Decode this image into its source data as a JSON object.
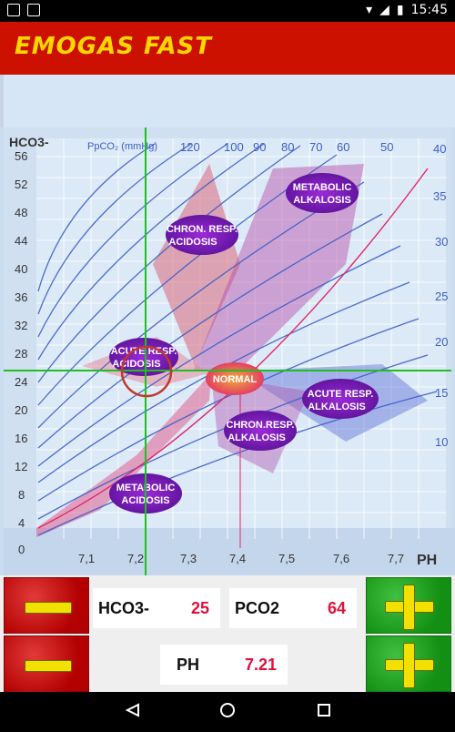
{
  "status": {
    "time": "15:45"
  },
  "app": {
    "title": "EMOGAS FAST"
  },
  "chart": {
    "hco3_label": "HCO3-",
    "pco2_label": "PpCO₂ (mmHg)",
    "ph_label": "PH",
    "y_ticks": [
      "56",
      "52",
      "48",
      "44",
      "40",
      "36",
      "32",
      "28",
      "24",
      "20",
      "16",
      "12",
      "8",
      "4",
      "0"
    ],
    "x_ticks": [
      "7,1",
      "7,2",
      "7,3",
      "7,4",
      "7,5",
      "7,6",
      "7,7"
    ],
    "pco2_top_ticks": [
      "120",
      "100",
      "90",
      "80",
      "70",
      "60",
      "50",
      "40"
    ],
    "pco2_right_ticks": [
      "35",
      "30",
      "25",
      "20",
      "15",
      "10"
    ],
    "zones": {
      "metabolic_alkalosis": [
        "METABOLIC",
        "ALKALOSIS"
      ],
      "chron_resp_acidosis": [
        "CHRON. RESP.",
        "ACIDOSIS"
      ],
      "acute_resp_acidosis": [
        "ACUTE RESP.",
        "ACIDOSIS"
      ],
      "normal": "NORMAL",
      "acute_resp_alkalosis": [
        "ACUTE RESP.",
        "ALKALOSIS"
      ],
      "chron_resp_alkalosis": [
        "CHRON.RESP.",
        "ALKALOSIS"
      ],
      "metabolic_acidosis": [
        "METABOLIC",
        "ACIDOSIS"
      ]
    },
    "colors": {
      "crosshair": "#1fbf1f",
      "marker": "#c0392b",
      "normal_fill": "#e43a7a"
    }
  },
  "controls": {
    "hco3": {
      "label": "HCO3-",
      "value": "25"
    },
    "pco2": {
      "label": "PCO2",
      "value": "64"
    },
    "ph": {
      "label": "PH",
      "value": "7.21"
    }
  }
}
